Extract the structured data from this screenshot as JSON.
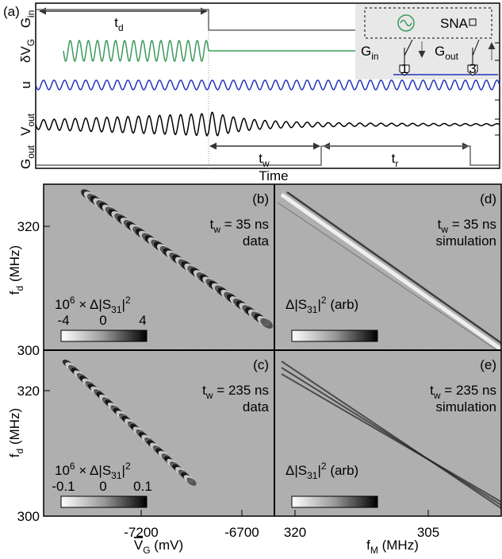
{
  "panel_a": {
    "label": "(a)",
    "traces": [
      [
        {
          "t": "G"
        },
        {
          "t": "in",
          "s": "sub"
        }
      ],
      [
        {
          "t": "δV"
        },
        {
          "t": "G",
          "s": "sub"
        }
      ],
      [
        {
          "t": "u"
        }
      ],
      [
        {
          "t": "V"
        },
        {
          "t": "out",
          "s": "sub"
        }
      ],
      [
        {
          "t": "G"
        },
        {
          "t": "out",
          "s": "sub"
        }
      ]
    ],
    "intervals": [
      [
        {
          "t": "t"
        },
        {
          "t": "d",
          "s": "sub"
        }
      ],
      [
        {
          "t": "t"
        },
        {
          "t": "w",
          "s": "sub"
        }
      ],
      [
        {
          "t": "t"
        },
        {
          "t": "r",
          "s": "sub"
        }
      ]
    ],
    "x_label": "Time",
    "inset": {
      "source": "SNA",
      "switch_in": [
        {
          "t": "G"
        },
        {
          "t": "in",
          "s": "sub"
        }
      ],
      "switch_out": [
        {
          "t": "G"
        },
        {
          "t": "out",
          "s": "sub"
        }
      ],
      "ports": [
        "1",
        "3"
      ]
    }
  },
  "panels": [
    {
      "label": "(b)",
      "tw": [
        {
          "t": "t"
        },
        {
          "t": "w",
          "s": "sub"
        },
        {
          "t": " = 35 ns"
        }
      ],
      "kind": "data",
      "colorbar_label": [
        {
          "t": "10"
        },
        {
          "t": "6",
          "s": "sup"
        },
        {
          "t": " × Δ|S"
        },
        {
          "t": "31",
          "s": "sub"
        },
        {
          "t": "|"
        },
        {
          "t": "2",
          "s": "sup"
        }
      ],
      "colorbar_ticks": [
        "-4",
        "0",
        "4"
      ]
    },
    {
      "label": "(d)",
      "tw": [
        {
          "t": "t"
        },
        {
          "t": "w",
          "s": "sub"
        },
        {
          "t": " = 35 ns"
        }
      ],
      "kind": "simulation",
      "colorbar_label": [
        {
          "t": "Δ|S"
        },
        {
          "t": "31",
          "s": "sub"
        },
        {
          "t": "|"
        },
        {
          "t": "2",
          "s": "sup"
        },
        {
          "t": " (arb)"
        }
      ]
    },
    {
      "label": "(c)",
      "tw": [
        {
          "t": "t"
        },
        {
          "t": "w",
          "s": "sub"
        },
        {
          "t": " = 235 ns"
        }
      ],
      "kind": "data",
      "colorbar_label": [
        {
          "t": "10"
        },
        {
          "t": "6",
          "s": "sup"
        },
        {
          "t": " × Δ|S"
        },
        {
          "t": "31",
          "s": "sub"
        },
        {
          "t": "|"
        },
        {
          "t": "2",
          "s": "sup"
        }
      ],
      "colorbar_ticks": [
        "-0.1",
        "0",
        "0.1"
      ]
    },
    {
      "label": "(e)",
      "tw": [
        {
          "t": "t"
        },
        {
          "t": "w",
          "s": "sub"
        },
        {
          "t": " = 235 ns"
        }
      ],
      "kind": "simulation",
      "colorbar_label": [
        {
          "t": "Δ|S"
        },
        {
          "t": "31",
          "s": "sub"
        },
        {
          "t": "|"
        },
        {
          "t": "2",
          "s": "sup"
        },
        {
          "t": " (arb)"
        }
      ]
    }
  ],
  "y_axis": {
    "label": [
      {
        "t": "f"
      },
      {
        "t": "d",
        "s": "sub"
      },
      {
        "t": " (MHz)"
      }
    ],
    "ticks": [
      "320",
      "300"
    ]
  },
  "x_axis_left": {
    "label": [
      {
        "t": "V",
        "s": "over"
      },
      {
        "t": "G",
        "s": "sub"
      },
      {
        "t": " (mV)"
      }
    ],
    "ticks": [
      "-7200",
      "-6700"
    ]
  },
  "x_axis_right": {
    "label": [
      {
        "t": "f"
      },
      {
        "t": "M",
        "s": "sub"
      },
      {
        "t": " (MHz)"
      }
    ],
    "ticks": [
      "320",
      "305"
    ]
  }
}
